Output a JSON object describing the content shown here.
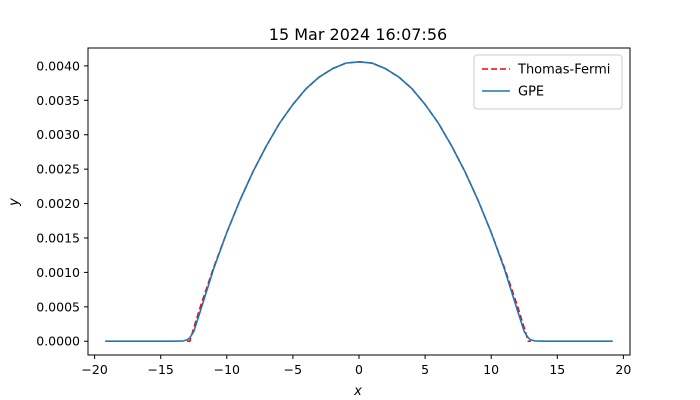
{
  "chart_data": {
    "type": "line",
    "title": "15 Mar 2024 16:07:56",
    "xlabel": "x",
    "ylabel": "y",
    "xlim": [
      -20.5,
      20.5
    ],
    "ylim": [
      -0.0002,
      0.00426
    ],
    "xticks": [
      -20,
      -15,
      -10,
      -5,
      0,
      5,
      10,
      15,
      20
    ],
    "xtick_labels": [
      "−20",
      "−15",
      "−10",
      "−5",
      "0",
      "5",
      "10",
      "15",
      "20"
    ],
    "yticks": [
      0.0,
      0.0005,
      0.001,
      0.0015,
      0.002,
      0.0025,
      0.003,
      0.0035,
      0.004
    ],
    "ytick_labels": [
      "0.0000",
      "0.0005",
      "0.0010",
      "0.0015",
      "0.0020",
      "0.0025",
      "0.0030",
      "0.0035",
      "0.0040"
    ],
    "grid": false,
    "legend_position": "top-right",
    "peak": 0.00406,
    "thomas_fermi_radius": 12.8,
    "x_domain": [
      -19.2,
      19.2
    ],
    "series": [
      {
        "name": "Thomas-Fermi",
        "color": "#ff0000",
        "style": "dashed",
        "x": [
          -13.0,
          -12.8,
          -12.5,
          -12.0,
          -11.0,
          -10.0,
          -9.0,
          -8.0,
          -7.0,
          -6.0,
          -5.0,
          -4.0,
          -3.0,
          -2.0,
          -1.0,
          0.0,
          1.0,
          2.0,
          3.0,
          4.0,
          5.0,
          6.0,
          7.0,
          8.0,
          9.0,
          10.0,
          11.0,
          12.0,
          12.5,
          12.8,
          13.0
        ],
        "y": [
          0.0,
          0.0,
          0.000192,
          0.000502,
          0.00107,
          0.00158,
          0.00205,
          0.00247,
          0.00284,
          0.00317,
          0.00344,
          0.00367,
          0.00384,
          0.00396,
          0.00404,
          0.00406,
          0.00404,
          0.00396,
          0.00384,
          0.00367,
          0.00344,
          0.00317,
          0.00284,
          0.00247,
          0.00205,
          0.00158,
          0.00107,
          0.000502,
          0.000192,
          0.0,
          0.0
        ]
      },
      {
        "name": "GPE",
        "color": "#1f77b4",
        "style": "solid",
        "x": [
          -19.2,
          -16.0,
          -14.0,
          -13.3,
          -13.0,
          -12.8,
          -12.5,
          -12.0,
          -11.0,
          -10.0,
          -9.0,
          -8.0,
          -7.0,
          -6.0,
          -5.0,
          -4.0,
          -3.0,
          -2.0,
          -1.0,
          0.0,
          1.0,
          2.0,
          3.0,
          4.0,
          5.0,
          6.0,
          7.0,
          8.0,
          9.0,
          10.0,
          11.0,
          12.0,
          12.5,
          12.8,
          13.0,
          13.3,
          14.0,
          16.0,
          19.2
        ],
        "y": [
          0.0,
          0.0,
          0.0,
          5e-06,
          2e-05,
          5e-05,
          0.00014,
          0.00044,
          0.00105,
          0.00158,
          0.00205,
          0.00247,
          0.00284,
          0.00317,
          0.00344,
          0.00367,
          0.00384,
          0.00396,
          0.00404,
          0.00406,
          0.00404,
          0.00396,
          0.00384,
          0.00367,
          0.00344,
          0.00317,
          0.00284,
          0.00247,
          0.00205,
          0.00158,
          0.00105,
          0.00044,
          0.00014,
          5e-05,
          2e-05,
          5e-06,
          0.0,
          0.0,
          0.0
        ]
      }
    ]
  }
}
